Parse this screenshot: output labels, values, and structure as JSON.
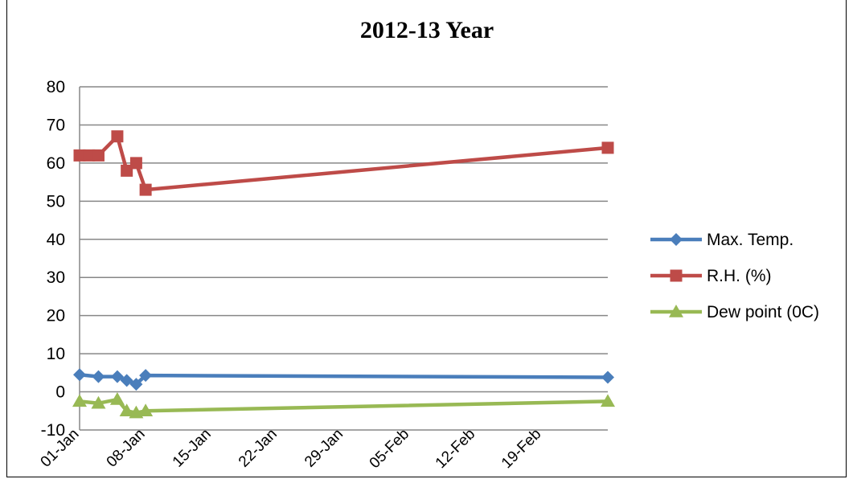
{
  "chart_data": {
    "type": "line",
    "title": "2012-13 Year",
    "xlabel": "",
    "ylabel": "",
    "ylim": [
      -10,
      80
    ],
    "y_ticks": [
      -10,
      0,
      10,
      20,
      30,
      40,
      50,
      60,
      70,
      80
    ],
    "x_range": [
      "2013-01-01",
      "2013-02-26"
    ],
    "x_ticks": [
      {
        "date": "2013-01-01",
        "label": "01-Jan"
      },
      {
        "date": "2013-01-08",
        "label": "08-Jan"
      },
      {
        "date": "2013-01-15",
        "label": "15-Jan"
      },
      {
        "date": "2013-01-22",
        "label": "22-Jan"
      },
      {
        "date": "2013-01-29",
        "label": "29-Jan"
      },
      {
        "date": "2013-02-05",
        "label": "05-Feb"
      },
      {
        "date": "2013-02-12",
        "label": "12-Feb"
      },
      {
        "date": "2013-02-19",
        "label": "19-Feb"
      }
    ],
    "grid": true,
    "legend_position": "right",
    "series": [
      {
        "name": "Max. Temp.",
        "color": "#4a7ebb",
        "marker": "diamond",
        "x": [
          "2013-01-01",
          "2013-01-03",
          "2013-01-05",
          "2013-01-06",
          "2013-01-07",
          "2013-01-08",
          "2013-02-26"
        ],
        "values": [
          4.5,
          4,
          4,
          3,
          2,
          4.3,
          3.8
        ]
      },
      {
        "name": "R.H. (%)",
        "color": "#be4b48",
        "marker": "square",
        "x": [
          "2013-01-01",
          "2013-01-02",
          "2013-01-03",
          "2013-01-05",
          "2013-01-06",
          "2013-01-07",
          "2013-01-08",
          "2013-02-26"
        ],
        "values": [
          62,
          62,
          62,
          67,
          58,
          60,
          53,
          64
        ]
      },
      {
        "name": "Dew point (0C)",
        "color": "#98b954",
        "marker": "triangle",
        "x": [
          "2013-01-01",
          "2013-01-03",
          "2013-01-05",
          "2013-01-06",
          "2013-01-07",
          "2013-01-08",
          "2013-02-26"
        ],
        "values": [
          -2.5,
          -3,
          -2,
          -5,
          -5.5,
          -5,
          -2.5
        ]
      }
    ]
  }
}
